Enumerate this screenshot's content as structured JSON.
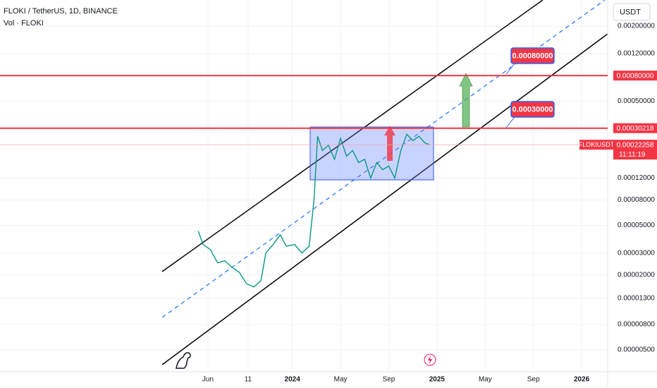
{
  "chart_data": {
    "type": "line",
    "title": "FLOKI / TetherUS, 1D, BINANCE",
    "subtitle": "Vol · FLOKI",
    "currency": "USDT",
    "symbol": "FLOKIUSDT",
    "countdown": "11:11:19",
    "log_scale": true,
    "grid": true,
    "xlim": [
      -12.25,
      38.16
    ],
    "xticks": [
      {
        "value": 5,
        "label": "Jun"
      },
      {
        "value": 8.33,
        "label": "11"
      },
      {
        "value": 12,
        "label": "2024"
      },
      {
        "value": 16,
        "label": "May"
      },
      {
        "value": 20,
        "label": "Sep"
      },
      {
        "value": 24,
        "label": "2025"
      },
      {
        "value": 28,
        "label": "May"
      },
      {
        "value": 32,
        "label": "Sep"
      },
      {
        "value": 36,
        "label": "2026"
      }
    ],
    "ylim": [
      3.33e-06,
      0.00324
    ],
    "yticks": [
      {
        "value": 0.002,
        "label": "0.00200000"
      },
      {
        "value": 0.0012,
        "label": "0.00120000"
      },
      {
        "value": 0.0005,
        "label": "0.00050000"
      },
      {
        "value": 0.00012,
        "label": "0.00012000"
      },
      {
        "value": 8e-05,
        "label": "0.00008000"
      },
      {
        "value": 5e-05,
        "label": "0.00005000"
      },
      {
        "value": 3e-05,
        "label": "0.00003000"
      },
      {
        "value": 2e-05,
        "label": "0.00002000"
      },
      {
        "value": 1.3e-05,
        "label": "0.00001300"
      },
      {
        "value": 8e-06,
        "label": "0.00000800"
      },
      {
        "value": 5e-06,
        "label": "0.00000500"
      }
    ],
    "series": [
      {
        "name": "FLOKIUSDT",
        "color": "#089981",
        "x": [
          4.2,
          4.6,
          5.2,
          5.8,
          6.4,
          7.0,
          7.6,
          8.2,
          8.8,
          9.4,
          9.8,
          10.4,
          11.0,
          11.5,
          12.2,
          12.8,
          13.4,
          13.8,
          14.1,
          14.5,
          15.0,
          15.5,
          16.0,
          16.5,
          17.0,
          17.5,
          18.0,
          18.5,
          19.0,
          19.5,
          20.0,
          20.5,
          21.0,
          21.5,
          22.0,
          22.5,
          23.0,
          23.4
        ],
        "values": [
          4.5e-05,
          3.5e-05,
          3.2e-05,
          2.5e-05,
          2.6e-05,
          2.3e-05,
          2.1e-05,
          1.7e-05,
          1.6e-05,
          1.8e-05,
          3e-05,
          3.5e-05,
          4.2e-05,
          3.4e-05,
          3.5e-05,
          3e-05,
          3.4e-05,
          8e-05,
          0.00026,
          0.0002,
          0.00022,
          0.00017,
          0.00025,
          0.00018,
          0.0002,
          0.00016,
          0.00017,
          0.00012,
          0.00016,
          0.00014,
          0.00015,
          0.00012,
          0.0002,
          0.00027,
          0.00024,
          0.00026,
          0.00023,
          0.00022258
        ]
      }
    ],
    "levels": [
      {
        "value": 0.0008,
        "label": "0.00080000"
      },
      {
        "value": 0.00030218,
        "label": "0.00030218"
      }
    ],
    "last_price": {
      "value": 0.00022258,
      "label": "0.00022258"
    },
    "annotations": [
      "0.00080000",
      "0.00030000"
    ]
  }
}
